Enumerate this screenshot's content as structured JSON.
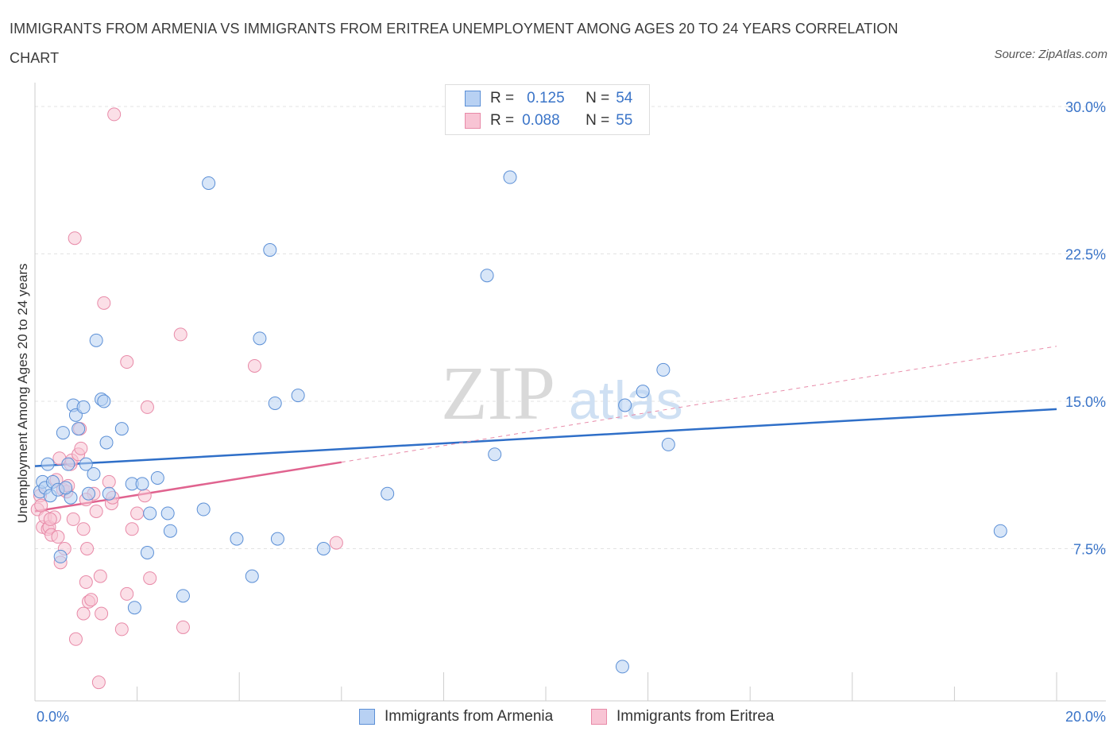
{
  "header": {
    "title": "IMMIGRANTS FROM ARMENIA VS IMMIGRANTS FROM ERITREA UNEMPLOYMENT AMONG AGES 20 TO 24 YEARS CORRELATION CHART",
    "source": "Source: ZipAtlas.com"
  },
  "watermark": {
    "zip": "ZIP",
    "atlas": "atlas"
  },
  "legend": {
    "r_label": "R =",
    "n_label": "N =",
    "armenia": {
      "r": "0.125",
      "n": "54"
    },
    "eritrea": {
      "r": "0.088",
      "n": "55"
    }
  },
  "colors": {
    "armenia_fill": "#b8d1f3",
    "armenia_stroke": "#5b8fd6",
    "armenia_line": "#2f6fc8",
    "eritrea_fill": "#f8c4d4",
    "eritrea_stroke": "#e88aa8",
    "eritrea_line": "#e0638f",
    "axis_label": "#3a74c8"
  },
  "chart_data": {
    "type": "scatter",
    "title": "IMMIGRANTS FROM ARMENIA VS IMMIGRANTS FROM ERITREA UNEMPLOYMENT AMONG AGES 20 TO 24 YEARS CORRELATION CHART",
    "xlabel": "",
    "ylabel": "Unemployment Among Ages 20 to 24 years",
    "xlim": [
      0,
      20
    ],
    "ylim": [
      0,
      30.5
    ],
    "x_tick_labels": [
      "0.0%",
      "20.0%"
    ],
    "y_ticks": [
      7.5,
      15.0,
      22.5,
      30.0
    ],
    "y_tick_labels": [
      "7.5%",
      "15.0%",
      "22.5%",
      "30.0%"
    ],
    "grid": true,
    "legend_placement": "top-center and bottom",
    "series": [
      {
        "name": "Immigrants from Armenia",
        "r": 0.125,
        "n": 54,
        "trend": {
          "x": [
            0,
            20
          ],
          "y": [
            11.7,
            14.6
          ]
        },
        "points": [
          [
            0.1,
            10.4
          ],
          [
            0.15,
            10.9
          ],
          [
            0.2,
            10.6
          ],
          [
            0.25,
            11.8
          ],
          [
            0.3,
            10.2
          ],
          [
            0.35,
            10.9
          ],
          [
            0.45,
            10.5
          ],
          [
            0.5,
            7.1
          ],
          [
            0.55,
            13.4
          ],
          [
            0.65,
            11.8
          ],
          [
            0.7,
            10.1
          ],
          [
            0.75,
            14.8
          ],
          [
            0.8,
            14.3
          ],
          [
            0.85,
            13.6
          ],
          [
            0.95,
            14.7
          ],
          [
            1.0,
            11.8
          ],
          [
            1.05,
            10.3
          ],
          [
            1.15,
            11.3
          ],
          [
            1.2,
            18.1
          ],
          [
            1.3,
            15.1
          ],
          [
            1.35,
            15.0
          ],
          [
            1.4,
            12.9
          ],
          [
            1.45,
            10.3
          ],
          [
            1.7,
            13.6
          ],
          [
            1.9,
            10.8
          ],
          [
            1.95,
            4.5
          ],
          [
            2.1,
            10.8
          ],
          [
            2.2,
            7.3
          ],
          [
            2.25,
            9.3
          ],
          [
            2.4,
            11.1
          ],
          [
            2.6,
            9.3
          ],
          [
            2.65,
            8.4
          ],
          [
            2.9,
            5.1
          ],
          [
            3.3,
            9.5
          ],
          [
            3.4,
            26.1
          ],
          [
            3.95,
            8.0
          ],
          [
            4.25,
            6.1
          ],
          [
            4.4,
            18.2
          ],
          [
            4.6,
            22.7
          ],
          [
            4.7,
            14.9
          ],
          [
            4.75,
            8.0
          ],
          [
            5.15,
            15.3
          ],
          [
            5.65,
            7.5
          ],
          [
            6.9,
            10.3
          ],
          [
            8.85,
            21.4
          ],
          [
            9.0,
            12.3
          ],
          [
            9.3,
            26.4
          ],
          [
            11.5,
            1.5
          ],
          [
            11.55,
            14.8
          ],
          [
            11.9,
            15.5
          ],
          [
            12.3,
            16.6
          ],
          [
            12.4,
            12.8
          ],
          [
            18.9,
            8.4
          ],
          [
            0.6,
            10.6
          ]
        ]
      },
      {
        "name": "Immigrants from Eritrea",
        "r": 0.088,
        "n": 55,
        "trend": {
          "x": [
            0,
            6.0
          ],
          "y": [
            9.4,
            11.9
          ]
        },
        "trend_extended": {
          "x": [
            6.0,
            20
          ],
          "y": [
            11.9,
            17.8
          ]
        },
        "points": [
          [
            0.05,
            9.5
          ],
          [
            0.1,
            10.2
          ],
          [
            0.12,
            9.7
          ],
          [
            0.15,
            8.6
          ],
          [
            0.2,
            9.1
          ],
          [
            0.25,
            8.5
          ],
          [
            0.28,
            8.6
          ],
          [
            0.32,
            8.2
          ],
          [
            0.38,
            9.1
          ],
          [
            0.42,
            11.0
          ],
          [
            0.45,
            8.1
          ],
          [
            0.48,
            12.1
          ],
          [
            0.5,
            6.8
          ],
          [
            0.55,
            10.5
          ],
          [
            0.58,
            7.5
          ],
          [
            0.62,
            10.4
          ],
          [
            0.65,
            10.7
          ],
          [
            0.7,
            11.8
          ],
          [
            0.72,
            12.0
          ],
          [
            0.75,
            9.0
          ],
          [
            0.78,
            23.3
          ],
          [
            0.8,
            2.9
          ],
          [
            0.85,
            12.3
          ],
          [
            0.88,
            13.6
          ],
          [
            0.9,
            12.6
          ],
          [
            0.95,
            4.2
          ],
          [
            0.95,
            8.5
          ],
          [
            1.0,
            5.8
          ],
          [
            1.02,
            7.5
          ],
          [
            1.05,
            4.8
          ],
          [
            1.1,
            4.9
          ],
          [
            1.15,
            10.3
          ],
          [
            1.2,
            9.4
          ],
          [
            1.25,
            0.7
          ],
          [
            1.28,
            6.1
          ],
          [
            1.3,
            4.2
          ],
          [
            1.35,
            20.0
          ],
          [
            1.45,
            10.9
          ],
          [
            1.5,
            9.8
          ],
          [
            1.52,
            10.1
          ],
          [
            1.55,
            29.6
          ],
          [
            1.7,
            3.4
          ],
          [
            1.8,
            5.2
          ],
          [
            1.8,
            17.0
          ],
          [
            1.9,
            8.5
          ],
          [
            2.0,
            9.3
          ],
          [
            2.15,
            10.2
          ],
          [
            2.2,
            14.7
          ],
          [
            2.25,
            6.0
          ],
          [
            2.85,
            18.4
          ],
          [
            2.9,
            3.5
          ],
          [
            4.3,
            16.8
          ],
          [
            5.9,
            7.8
          ],
          [
            0.3,
            9.0
          ],
          [
            1.0,
            10.0
          ]
        ]
      }
    ]
  },
  "bottom_legend": {
    "armenia_label": "Immigrants from Armenia",
    "eritrea_label": "Immigrants from Eritrea"
  }
}
